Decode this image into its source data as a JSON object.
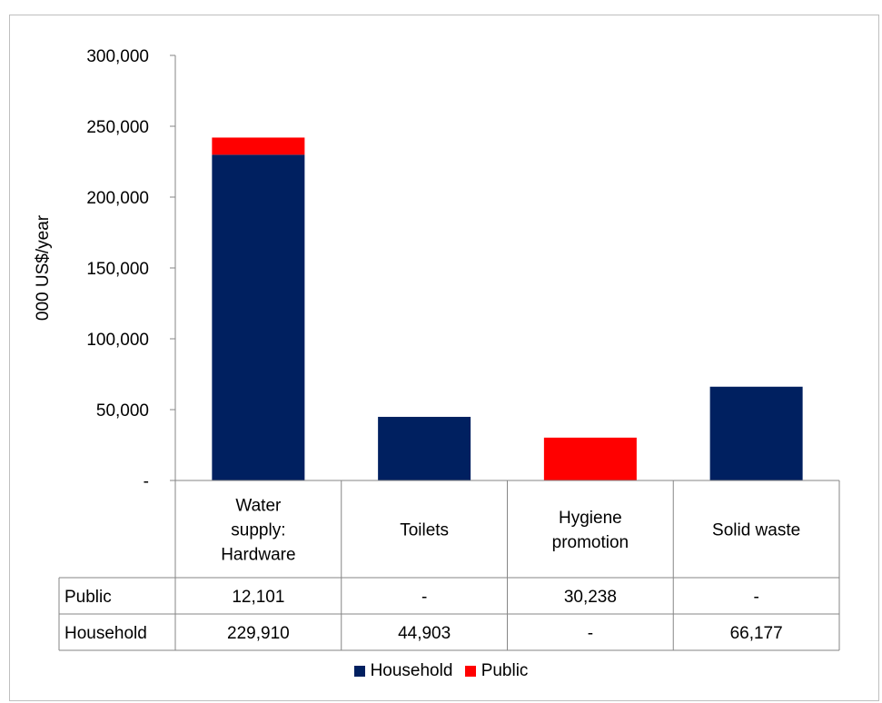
{
  "chart_data": {
    "type": "bar",
    "stacked": true,
    "ylabel": "000 US$/year",
    "ylim": [
      0,
      300000
    ],
    "y_ticks": [
      {
        "value": 0,
        "label": "-"
      },
      {
        "value": 50000,
        "label": "50,000"
      },
      {
        "value": 100000,
        "label": "100,000"
      },
      {
        "value": 150000,
        "label": "150,000"
      },
      {
        "value": 200000,
        "label": "200,000"
      },
      {
        "value": 250000,
        "label": "250,000"
      },
      {
        "value": 300000,
        "label": "300,000"
      }
    ],
    "categories": [
      [
        "Water",
        "supply:",
        "Hardware"
      ],
      [
        "Toilets"
      ],
      [
        "Hygiene",
        "promotion"
      ],
      [
        "Solid waste"
      ]
    ],
    "series": [
      {
        "name": "Household",
        "color": "#002060",
        "values": [
          229910,
          44903,
          0,
          66177
        ],
        "table_labels": [
          "229,910",
          "44,903",
          "-",
          "66,177"
        ]
      },
      {
        "name": "Public",
        "color": "#ff0000",
        "values": [
          12101,
          0,
          30238,
          0
        ],
        "table_labels": [
          "12,101",
          "-",
          "30,238",
          "-"
        ]
      }
    ],
    "data_table_row_order": [
      "Public",
      "Household"
    ],
    "legend": [
      "Household",
      "Public"
    ],
    "legend_position": "bottom",
    "grid": false
  }
}
